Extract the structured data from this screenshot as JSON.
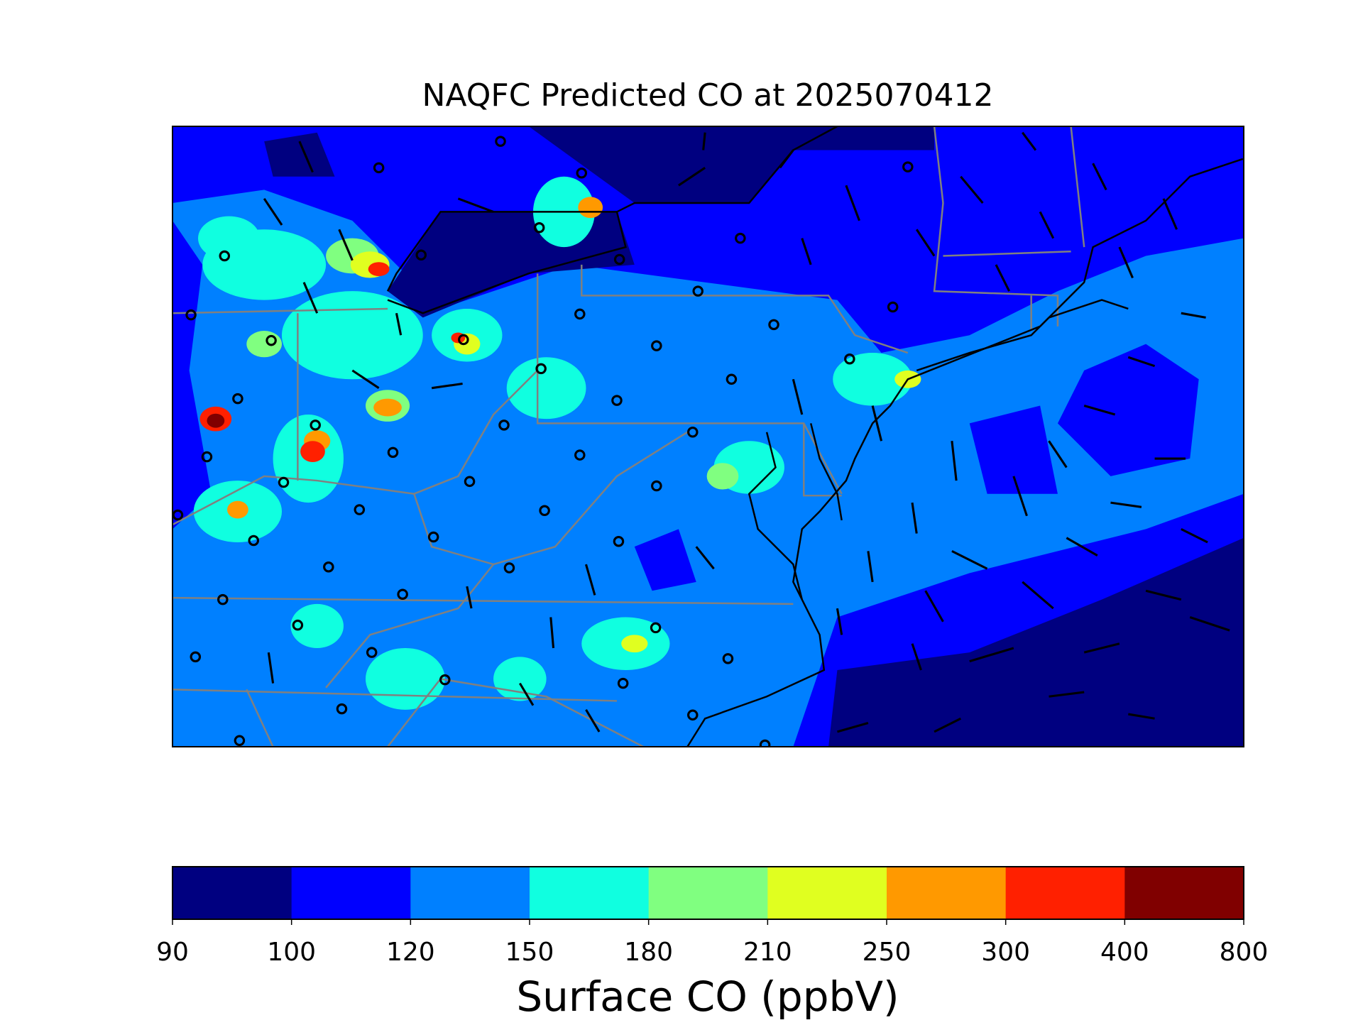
{
  "chart_data": {
    "type": "map",
    "title": "NAQFC Predicted CO at 2025070412",
    "colorbar": {
      "label": "Surface CO (ppbV)",
      "ticks": [
        90,
        100,
        120,
        150,
        180,
        210,
        250,
        300,
        400,
        800
      ],
      "colors": [
        "#000080",
        "#0000ff",
        "#0080ff",
        "#10ffe0",
        "#80ff80",
        "#e0ff20",
        "#ff9900",
        "#ff2000",
        "#800000"
      ]
    }
  }
}
